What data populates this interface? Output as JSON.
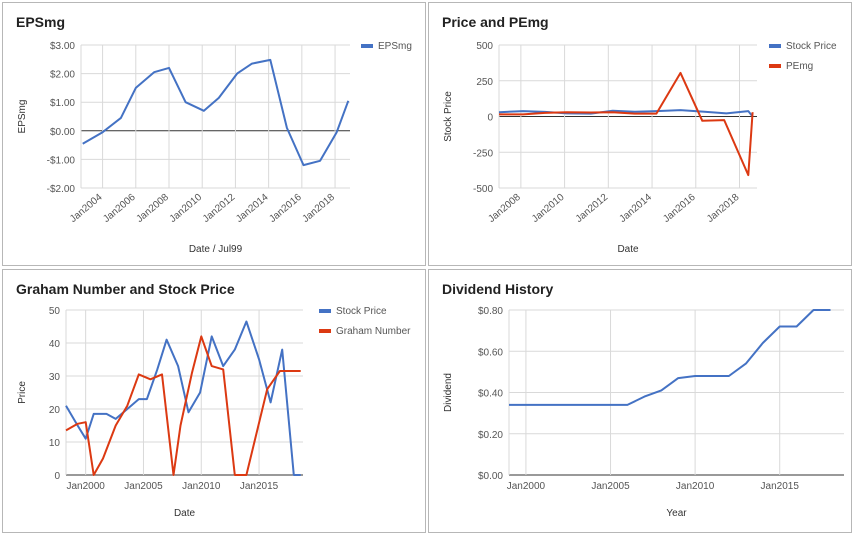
{
  "colors": {
    "blue": "#4472c4",
    "red": "#dc3912",
    "grid": "#d9d9d9",
    "axis": "#333333",
    "text": "#555555"
  },
  "chart_data": [
    {
      "id": "epsmg",
      "type": "line",
      "title": "EPSmg",
      "xlabel": "Date / Jul99",
      "ylabel": "EPSmg",
      "xlim": [
        2002.7,
        2018.9
      ],
      "ylim": [
        -2,
        3
      ],
      "y_ticks": [
        -2,
        -1,
        0,
        1,
        2,
        3
      ],
      "y_tick_labels": [
        "-$2.00",
        "-$1.00",
        "$0.00",
        "$1.00",
        "$2.00",
        "$3.00"
      ],
      "x_ticks": [
        2004,
        2006,
        2008,
        2010,
        2012,
        2014,
        2016,
        2018
      ],
      "x_tick_labels": [
        "Jan2004",
        "Jan2006",
        "Jan2008",
        "Jan2010",
        "Jan2012",
        "Jan2014",
        "Jan2016",
        "Jan2018"
      ],
      "x_label_rotate": true,
      "grid": true,
      "legend": "right",
      "series": [
        {
          "name": "EPSmg",
          "color": "#4472c4",
          "x": [
            2002.8,
            2004.0,
            2005.1,
            2006.0,
            2007.1,
            2008.0,
            2009.0,
            2010.1,
            2011.0,
            2012.1,
            2013.0,
            2014.1,
            2015.1,
            2016.1,
            2017.1,
            2018.1,
            2018.8
          ],
          "y": [
            -0.45,
            -0.05,
            0.45,
            1.5,
            2.05,
            2.2,
            1.0,
            0.7,
            1.15,
            2.0,
            2.35,
            2.48,
            0.1,
            -1.2,
            -1.05,
            -0.05,
            1.05
          ]
        }
      ]
    },
    {
      "id": "price-pe",
      "type": "line",
      "title": "Price and PEmg",
      "xlabel": "Date",
      "ylabel": "Stock Price",
      "xlim": [
        2007.0,
        2018.8
      ],
      "ylim": [
        -500,
        500
      ],
      "y_ticks": [
        -500,
        -250,
        0,
        250,
        500
      ],
      "y_tick_labels": [
        "-500",
        "-250",
        "0",
        "250",
        "500"
      ],
      "x_ticks": [
        2008,
        2010,
        2012,
        2014,
        2016,
        2018
      ],
      "x_tick_labels": [
        "Jan2008",
        "Jan2010",
        "Jan2012",
        "Jan2014",
        "Jan2016",
        "Jan2018"
      ],
      "x_label_rotate": true,
      "grid": true,
      "legend": "right",
      "series": [
        {
          "name": "Stock Price",
          "color": "#4472c4",
          "x": [
            2007.0,
            2008.1,
            2009.1,
            2010.1,
            2011.2,
            2012.2,
            2013.2,
            2014.2,
            2015.3,
            2016.4,
            2017.4,
            2018.4,
            2018.6
          ],
          "y": [
            30,
            38,
            32,
            22,
            20,
            40,
            33,
            38,
            45,
            33,
            22,
            38,
            0
          ]
        },
        {
          "name": "PEmg",
          "color": "#dc3912",
          "x": [
            2007.0,
            2008.1,
            2009.1,
            2010.1,
            2011.2,
            2012.2,
            2013.2,
            2014.2,
            2015.3,
            2016.3,
            2017.3,
            2018.4,
            2018.6
          ],
          "y": [
            15,
            15,
            25,
            30,
            28,
            30,
            20,
            20,
            305,
            -30,
            -25,
            -410,
            30
          ]
        }
      ]
    },
    {
      "id": "graham",
      "type": "line",
      "title": "Graham Number and Stock Price",
      "xlabel": "Date",
      "ylabel": "Price",
      "xlim": [
        1998.3,
        2018.8
      ],
      "ylim": [
        0,
        50
      ],
      "y_ticks": [
        0,
        10,
        20,
        30,
        40,
        50
      ],
      "y_tick_labels": [
        "0",
        "10",
        "20",
        "30",
        "40",
        "50"
      ],
      "x_ticks": [
        2000,
        2005,
        2010,
        2015
      ],
      "x_tick_labels": [
        "Jan2000",
        "Jan2005",
        "Jan2010",
        "Jan2015"
      ],
      "x_label_rotate": false,
      "grid": true,
      "legend": "right",
      "series": [
        {
          "name": "Stock Price",
          "color": "#4472c4",
          "x": [
            1998.3,
            1999.3,
            2000.0,
            2000.7,
            2001.8,
            2002.6,
            2003.6,
            2004.6,
            2005.3,
            2006.2,
            2007.0,
            2008.0,
            2008.9,
            2009.9,
            2010.9,
            2011.9,
            2012.9,
            2013.9,
            2015.0,
            2016.0,
            2017.0,
            2018.0,
            2018.6
          ],
          "y": [
            21,
            15,
            11,
            18.5,
            18.5,
            17,
            20,
            23,
            23,
            32,
            41,
            33,
            19,
            25,
            42,
            33,
            38,
            46.5,
            35,
            22,
            38,
            0,
            0
          ]
        },
        {
          "name": "Graham Number",
          "color": "#dc3912",
          "x": [
            1998.3,
            1999.3,
            2000.0,
            2000.7,
            2001.5,
            2002.6,
            2003.6,
            2004.6,
            2005.6,
            2006.6,
            2007.6,
            2008.2,
            2009.2,
            2010.0,
            2010.9,
            2011.9,
            2012.9,
            2013.9,
            2014.6,
            2015.7,
            2016.8,
            2017.8,
            2018.6
          ],
          "y": [
            13.5,
            15.5,
            16,
            0,
            5,
            15,
            21,
            30.5,
            29,
            30.5,
            0,
            15,
            31,
            42,
            33,
            32,
            0,
            0,
            10,
            26,
            31.5,
            31.5,
            31.5
          ]
        }
      ]
    },
    {
      "id": "dividend",
      "type": "line",
      "title": "Dividend History",
      "xlabel": "Year",
      "ylabel": "Dividend",
      "xlim": [
        1999.0,
        2018.8
      ],
      "ylim": [
        0,
        0.8
      ],
      "y_ticks": [
        0,
        0.2,
        0.4,
        0.6,
        0.8
      ],
      "y_tick_labels": [
        "$0.00",
        "$0.20",
        "$0.40",
        "$0.60",
        "$0.80"
      ],
      "x_ticks": [
        2000,
        2005,
        2010,
        2015
      ],
      "x_tick_labels": [
        "Jan2000",
        "Jan2005",
        "Jan2010",
        "Jan2015"
      ],
      "x_label_rotate": false,
      "grid": true,
      "legend": "none",
      "series": [
        {
          "name": "",
          "color": "#4472c4",
          "x": [
            1999.0,
            2001.0,
            2002.0,
            2003.0,
            2004.0,
            2005.0,
            2006.0,
            2007.0,
            2008.0,
            2009.0,
            2010.0,
            2011.0,
            2012.0,
            2013.0,
            2014.0,
            2015.0,
            2016.0,
            2017.0,
            2018.0
          ],
          "y": [
            0.34,
            0.34,
            0.34,
            0.34,
            0.34,
            0.34,
            0.34,
            0.38,
            0.41,
            0.47,
            0.48,
            0.48,
            0.48,
            0.54,
            0.64,
            0.72,
            0.72,
            0.8,
            0.8
          ]
        }
      ]
    }
  ]
}
